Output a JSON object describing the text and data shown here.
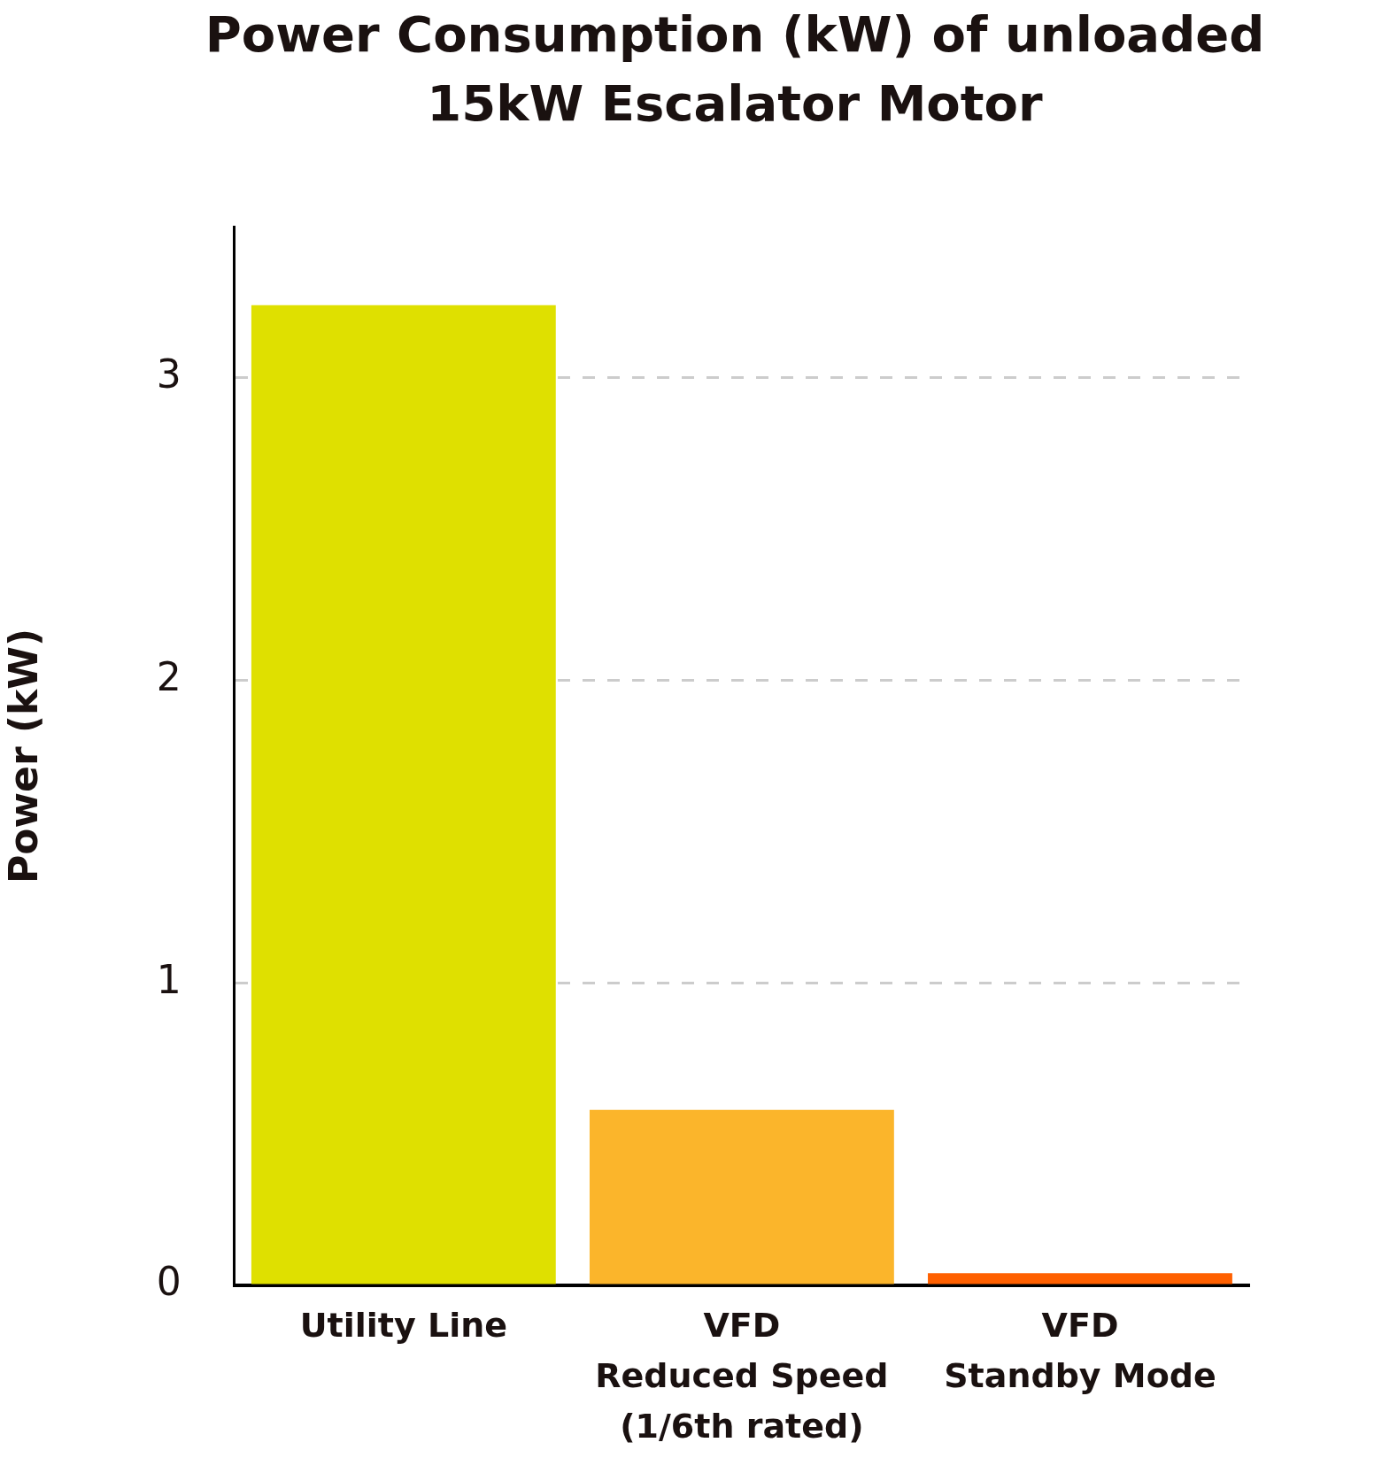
{
  "chart_data": {
    "type": "bar",
    "title": "Power Consumption (kW) of unloaded 15kW Escalator Motor",
    "ylabel": "Power (kW)",
    "categories": [
      "Utility Line",
      "VFD\nReduced Speed\n(1/6th rated)",
      "VFD\nStandby Mode"
    ],
    "values": [
      3.24,
      0.58,
      0.04
    ],
    "colors": [
      "#dfe000",
      "#fbb52b",
      "#ff6000"
    ],
    "ylim": [
      0,
      3.5
    ],
    "yticks": [
      0,
      1,
      2,
      3
    ],
    "grid": "y",
    "legend": false
  }
}
